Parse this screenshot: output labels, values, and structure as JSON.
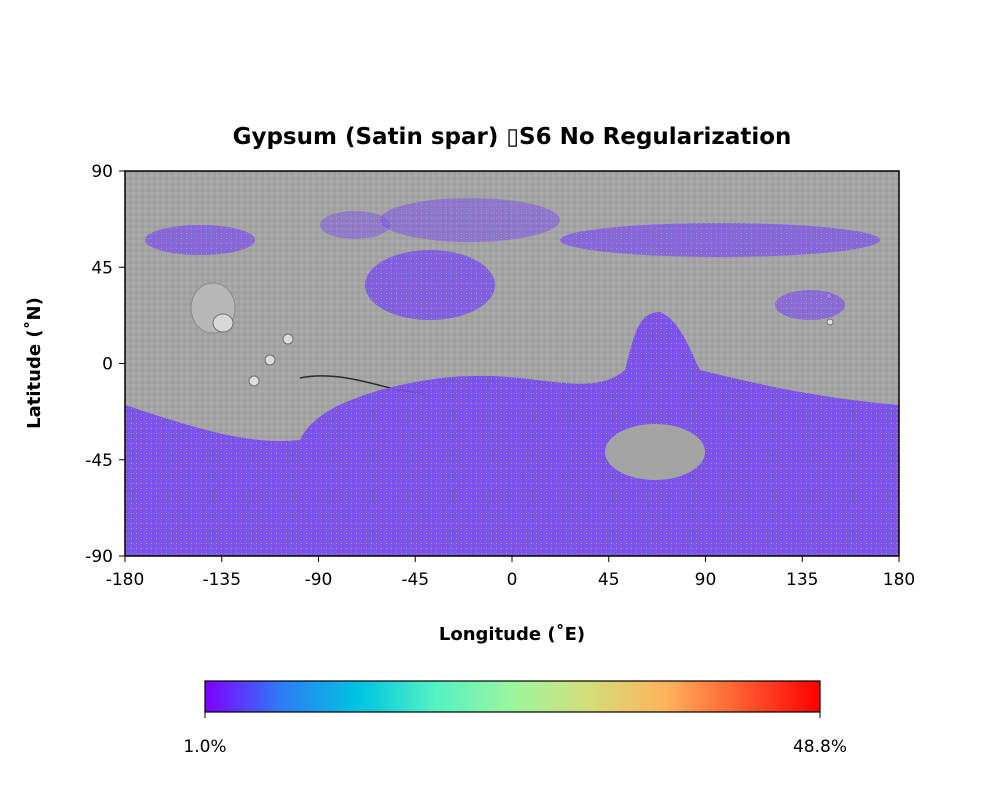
{
  "map": {
    "title": "Gypsum (Satin spar) ▯S6 No Regularization",
    "xlabel": "Longitude (˚E)",
    "ylabel": "Latitude (˚N)",
    "projection": "equirectangular",
    "x_ticks": [
      "-180",
      "-135",
      "-90",
      "-45",
      "0",
      "45",
      "90",
      "135",
      "180"
    ],
    "y_ticks": [
      "90",
      "45",
      "0",
      "-45",
      "-90"
    ],
    "base_layer": "grayscale shaded-relief basemap",
    "overlay_color": "#7b3cf0"
  },
  "colorbar": {
    "min_label": "1.0%",
    "max_label": "48.8%",
    "colormap": "rainbow",
    "stops": [
      "#7f00ff",
      "#2d7df6",
      "#00c4e0",
      "#54f2c4",
      "#9cf59e",
      "#d4dd7a",
      "#ffb25c",
      "#ff5a2e",
      "#ff0000"
    ]
  }
}
